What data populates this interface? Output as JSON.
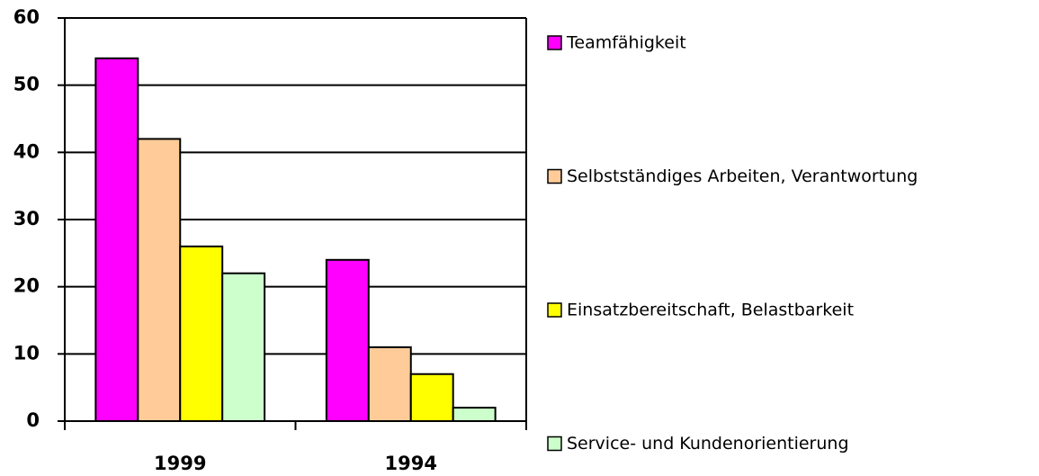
{
  "chart_data": {
    "type": "bar",
    "categories": [
      "1999",
      "1994"
    ],
    "series": [
      {
        "name": "Teamfähigkeit",
        "color": "#ff00ff",
        "values": [
          54,
          24
        ]
      },
      {
        "name": "Selbstständiges Arbeiten, Verantwortung",
        "color": "#ffcc99",
        "values": [
          42,
          11
        ]
      },
      {
        "name": "Einsatzbereitschaft, Belastbarkeit",
        "color": "#ffff00",
        "values": [
          26,
          7
        ]
      },
      {
        "name": "Service- und Kundenorientierung",
        "color": "#ccffcc",
        "values": [
          22,
          2
        ]
      }
    ],
    "ylim": [
      0,
      60
    ],
    "yticks": [
      0,
      10,
      20,
      30,
      40,
      50,
      60
    ],
    "grid": true,
    "legend": "right"
  }
}
